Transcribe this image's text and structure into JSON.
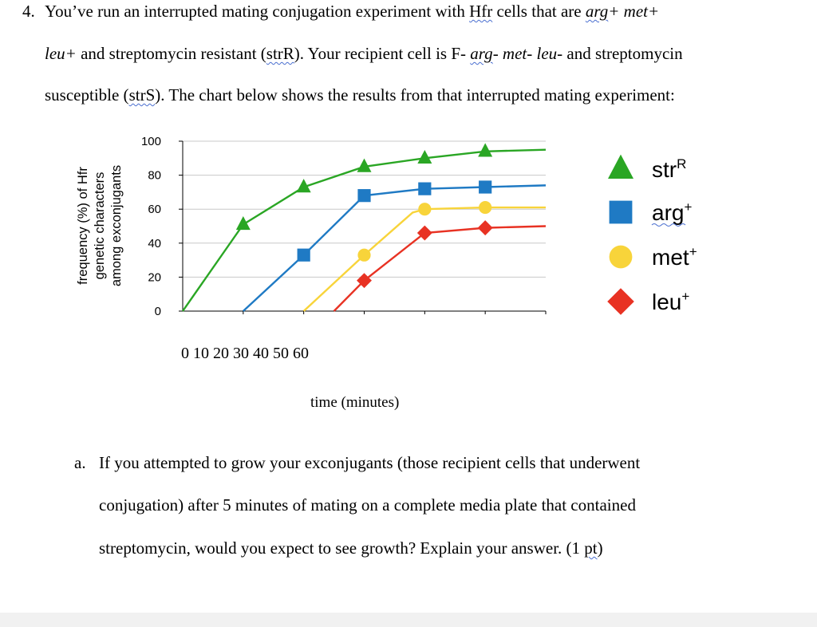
{
  "question": {
    "number": "4.",
    "line1_a": "You’ve run an interrupted mating conjugation experiment with ",
    "line1_hfr": "Hfr",
    "line1_b": " cells that are ",
    "line1_arg": "arg",
    "line1_c": "+ met+",
    "line2_a": "leu+",
    "line2_b": " and streptomycin resistant (",
    "line2_strR": "strR",
    "line2_c": "). Your recipient cell is F- ",
    "line2_arg": "arg",
    "line2_d": "- met- leu-",
    "line2_e": " and streptomycin",
    "line3_a": "susceptible (",
    "line3_strS": "strS",
    "line3_b": "). The chart below shows the results from that interrupted mating experiment:"
  },
  "chart_data": {
    "type": "line",
    "ylabel_lines": [
      "frequency (%) of Hfr",
      "genetic characters",
      "among exconjugants"
    ],
    "xlabel": "time (minutes)",
    "x_tick_text": "0 10 20 30 40 50 60",
    "y_ticks": [
      "0",
      "20",
      "40",
      "60",
      "80",
      "100"
    ],
    "ylim": [
      0,
      100
    ],
    "xlim": [
      0,
      60
    ],
    "grid": true,
    "legend_position": "right",
    "series": [
      {
        "name": "strR",
        "marker": "triangle",
        "color": "#2aa624",
        "points": [
          [
            0,
            0
          ],
          [
            10,
            51
          ],
          [
            20,
            73
          ],
          [
            30,
            85
          ],
          [
            40,
            90
          ],
          [
            50,
            94
          ],
          [
            60,
            95
          ]
        ]
      },
      {
        "name": "arg",
        "marker": "square",
        "color": "#1f7ac4",
        "points": [
          [
            10,
            0
          ],
          [
            20,
            33
          ],
          [
            30,
            68
          ],
          [
            40,
            72
          ],
          [
            50,
            73
          ],
          [
            60,
            74
          ]
        ]
      },
      {
        "name": "met",
        "marker": "circle",
        "color": "#f8d43a",
        "points": [
          [
            20,
            0
          ],
          [
            30,
            33
          ],
          [
            38,
            58
          ],
          [
            40,
            60
          ],
          [
            50,
            61
          ],
          [
            60,
            61
          ]
        ]
      },
      {
        "name": "leu",
        "marker": "diamond",
        "color": "#e83223",
        "points": [
          [
            25,
            0
          ],
          [
            30,
            18
          ],
          [
            40,
            46
          ],
          [
            50,
            49
          ],
          [
            60,
            50
          ]
        ]
      }
    ]
  },
  "legend": [
    {
      "name": "strR",
      "base": "str",
      "super": "R",
      "marker": "triangle",
      "color": "#2aa624"
    },
    {
      "name": "arg+",
      "base": "arg",
      "super": "+",
      "marker": "square",
      "color": "#1f7ac4"
    },
    {
      "name": "met+",
      "base": "met",
      "super": "+",
      "marker": "circle",
      "color": "#f8d43a"
    },
    {
      "name": "leu+",
      "base": "leu",
      "super": "+",
      "marker": "diamond",
      "color": "#e83223"
    }
  ],
  "part_a": {
    "label": "a.",
    "line1": "If you attempted to grow your exconjugants (those recipient cells that underwent",
    "line2": "conjugation) after 5 minutes of mating on a complete media plate that contained",
    "line3_a": "streptomycin, would you expect to see growth? Explain your answer. (1 ",
    "line3_pt": "pt",
    "line3_b": ")"
  }
}
